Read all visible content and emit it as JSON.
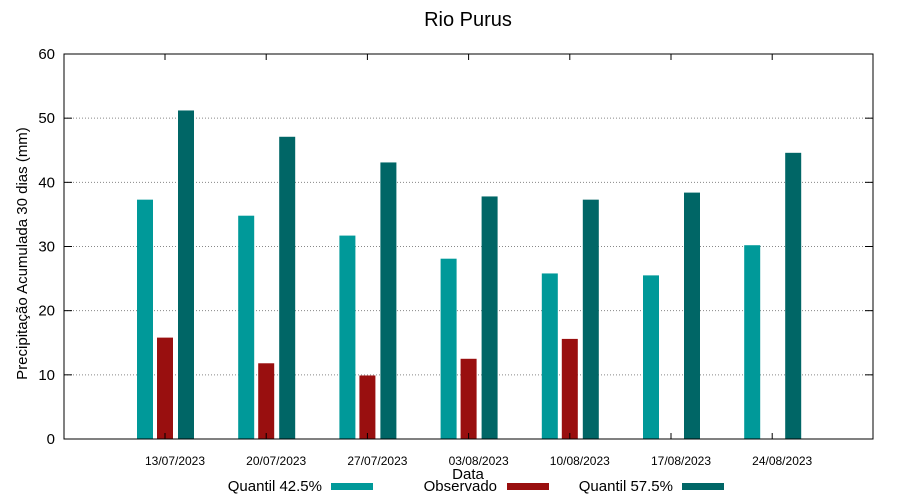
{
  "chart_data": {
    "type": "bar",
    "title": "Rio Purus",
    "xlabel": "Data",
    "ylabel": "Precipitação Acumulada 30 dias (mm)",
    "ylim": [
      0,
      60
    ],
    "yticks": [
      0,
      10,
      20,
      30,
      40,
      50,
      60
    ],
    "grid": "horizontal dotted",
    "legend_position": "bottom",
    "categories": [
      "13/07/2023",
      "20/07/2023",
      "27/07/2023",
      "03/08/2023",
      "10/08/2023",
      "17/08/2023",
      "24/08/2023"
    ],
    "series": [
      {
        "name": "Quantil 42.5%",
        "color": "#009999",
        "values": [
          37.3,
          34.8,
          31.7,
          28.1,
          25.8,
          25.5,
          30.2
        ]
      },
      {
        "name": "Observado",
        "color": "#990f0f",
        "values": [
          15.8,
          11.8,
          9.9,
          12.5,
          15.6,
          null,
          null
        ]
      },
      {
        "name": "Quantil 57.5%",
        "color": "#006666",
        "values": [
          51.2,
          47.1,
          43.1,
          37.8,
          37.3,
          38.4,
          44.6
        ]
      }
    ]
  }
}
